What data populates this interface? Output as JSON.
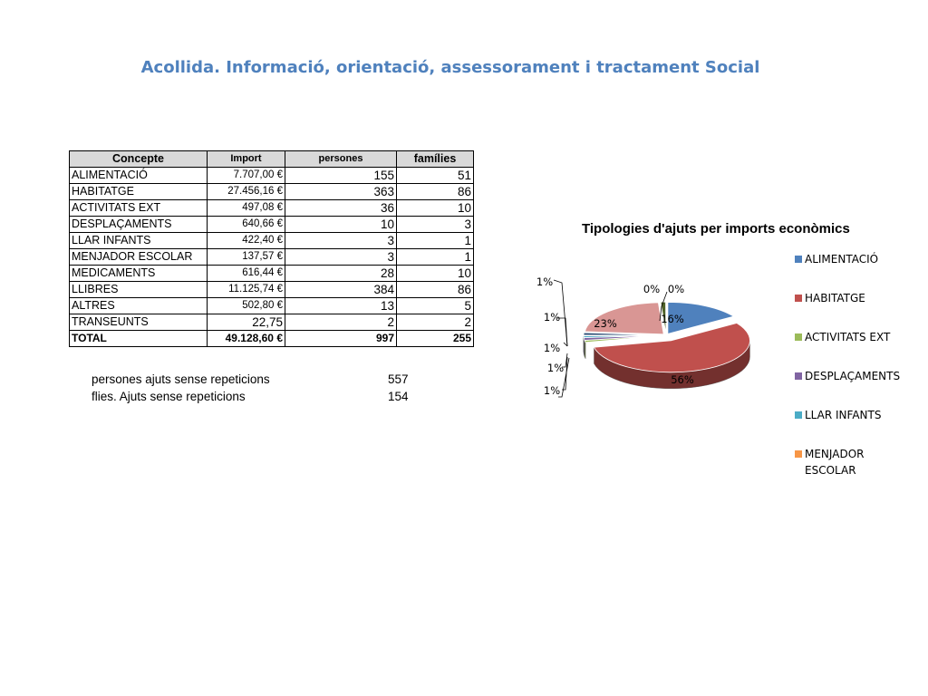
{
  "title": "Acollida. Informació, orientació, assessorament i tractament Social",
  "table": {
    "headers": [
      "Concepte",
      "Import",
      "persones",
      "famílies"
    ],
    "rows": [
      [
        "ALIMENTACIÓ",
        "7.707,00 €",
        "155",
        "51"
      ],
      [
        "HABITATGE",
        "27.456,16 €",
        "363",
        "86"
      ],
      [
        "ACTIVITATS EXT",
        "497,08 €",
        "36",
        "10"
      ],
      [
        "DESPLAÇAMENTS",
        "640,66 €",
        "10",
        "3"
      ],
      [
        "LLAR INFANTS",
        "422,40 €",
        "3",
        "1"
      ],
      [
        "MENJADOR ESCOLAR",
        "137,57 €",
        "3",
        "1"
      ],
      [
        "MEDICAMENTS",
        "616,44 €",
        "28",
        "10"
      ],
      [
        "LLIBRES",
        "11.125,74 €",
        "384",
        "86"
      ],
      [
        "ALTRES",
        "502,80 €",
        "13",
        "5"
      ],
      [
        "TRANSEUNTS",
        "22,75",
        "2",
        "2"
      ]
    ],
    "total": [
      "TOTAL",
      "49.128,60 €",
      "997",
      "255"
    ]
  },
  "summary": [
    {
      "label": "persones ajuts sense repeticions",
      "value": "557"
    },
    {
      "label": "flies. Ajuts sense repeticions",
      "value": "154"
    }
  ],
  "chart_data": {
    "type": "pie",
    "title": "Tipologies d'ajuts per imports econòmics",
    "categories": [
      "ALIMENTACIÓ",
      "HABITATGE",
      "ACTIVITATS EXT",
      "DESPLAÇAMENTS",
      "LLAR INFANTS",
      "MENJADOR ESCOLAR",
      "MEDICAMENTS",
      "LLIBRES",
      "ALTRES",
      "TRANSEUNTS"
    ],
    "values": [
      7707.0,
      27456.16,
      497.08,
      640.66,
      422.4,
      137.57,
      616.44,
      11125.74,
      502.8,
      22.75
    ],
    "data_labels": [
      "16%",
      "56%",
      "1%",
      "1%",
      "1%",
      "0%",
      "1%",
      "23%",
      "1%",
      "0%"
    ],
    "legend": [
      "ALIMENTACIÓ",
      "HABITATGE",
      "ACTIVITATS EXT",
      "DESPLAÇAMENTS",
      "LLAR INFANTS",
      "MENJADOR ESCOLAR"
    ],
    "legend_position": "right",
    "colors": [
      "#4F81BD",
      "#C0504D",
      "#9BBB59",
      "#8064A2",
      "#4BACC6",
      "#F79646",
      "#2C4D75",
      "#D99694",
      "#4F6228",
      "#A6A6A6"
    ]
  }
}
